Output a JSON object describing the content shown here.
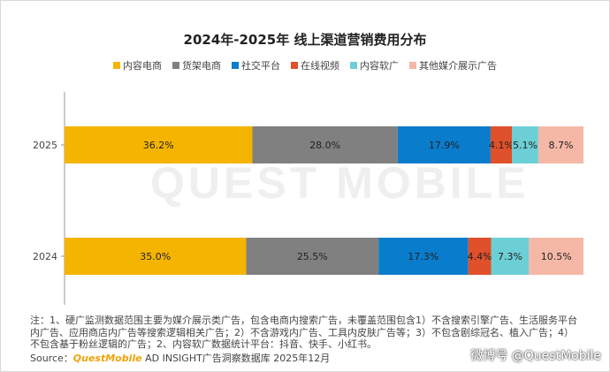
{
  "title": "2024年-2025年 线上渠道营销费用分布",
  "legend": [
    {
      "label": "内容电商",
      "color": "#f5b400"
    },
    {
      "label": "货架电商",
      "color": "#808080"
    },
    {
      "label": "社交平台",
      "color": "#0a7ccc"
    },
    {
      "label": "在线视频",
      "color": "#e0502a"
    },
    {
      "label": "内容软广",
      "color": "#6ccfd6"
    },
    {
      "label": "其他媒介展示广告",
      "color": "#f5b8a7"
    }
  ],
  "chart_data": {
    "type": "bar",
    "orientation": "horizontal",
    "stacked": true,
    "unit": "%",
    "title": "2024年-2025年 线上渠道营销费用分布",
    "categories": [
      "2025",
      "2024"
    ],
    "series": [
      {
        "name": "内容电商",
        "values": [
          36.2,
          35.0
        ],
        "color": "#f5b400"
      },
      {
        "name": "货架电商",
        "values": [
          28.0,
          25.5
        ],
        "color": "#808080"
      },
      {
        "name": "社交平台",
        "values": [
          17.9,
          17.3
        ],
        "color": "#0a7ccc"
      },
      {
        "name": "在线视频",
        "values": [
          4.1,
          4.4
        ],
        "color": "#e0502a"
      },
      {
        "name": "内容软广",
        "values": [
          5.1,
          7.3
        ],
        "color": "#6ccfd6"
      },
      {
        "name": "其他媒介展示广告",
        "values": [
          8.7,
          10.5
        ],
        "color": "#f5b8a7"
      }
    ],
    "labels": [
      [
        "36.2%",
        "28.0%",
        "17.9%",
        "4.1%",
        "5.1%",
        "8.7%"
      ],
      [
        "35.0%",
        "25.5%",
        "17.3%",
        "4.4%",
        "7.3%",
        "10.5%"
      ]
    ],
    "xlim": [
      0,
      100
    ],
    "grid": false,
    "legend_position": "top"
  },
  "watermark": "QUEST MOBILE",
  "note": "注：1、硬广监测数据范围主要为媒介展示类广告，包含电商内搜索广告，未覆盖范围包含1）不含搜索引擎广告、生活服务平台内广告、应用商店内广告等搜索逻辑相关广告；2）不含游戏内广告、工具内皮肤广告等；3）不包含剧综冠名、植入广告；4）不包含基于粉丝逻辑的广告；2、内容软广数据统计平台：抖音、快手、小红书。",
  "source": {
    "prefix": "Source：",
    "brand": "QuestMobile",
    "rest": " AD INSIGHT广告洞察数据库 2025年12月"
  },
  "weibo_mark": "微博号 @QuestMobile"
}
